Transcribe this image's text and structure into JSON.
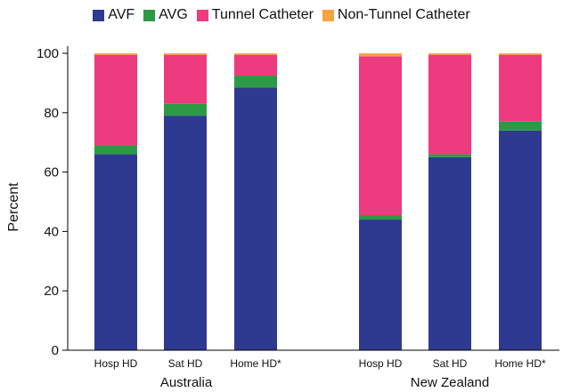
{
  "chart_data": {
    "type": "bar",
    "stacked": true,
    "ylabel": "Percent",
    "ylim": [
      0,
      100
    ],
    "yticks": [
      0,
      20,
      40,
      60,
      80,
      100
    ],
    "legend_position": "top",
    "groups": [
      {
        "name": "Australia",
        "categories": [
          "Hosp HD",
          "Sat HD",
          "Home HD*"
        ]
      },
      {
        "name": "New Zealand",
        "categories": [
          "Hosp HD",
          "Sat HD",
          "Home HD*"
        ]
      }
    ],
    "series": [
      {
        "name": "AVF",
        "color": "#2e3a8f",
        "values": [
          66,
          79,
          88.5,
          44,
          65,
          74
        ]
      },
      {
        "name": "AVG",
        "color": "#2c9a45",
        "values": [
          3,
          4,
          4,
          1.5,
          1,
          3
        ]
      },
      {
        "name": "Tunnel Catheter",
        "color": "#ee3a7e",
        "values": [
          30.5,
          16.5,
          7,
          53.5,
          33.5,
          22.5
        ]
      },
      {
        "name": "Non-Tunnel Catheter",
        "color": "#f6a340",
        "values": [
          0.5,
          0.5,
          0.5,
          1,
          0.5,
          0.5
        ]
      }
    ]
  }
}
